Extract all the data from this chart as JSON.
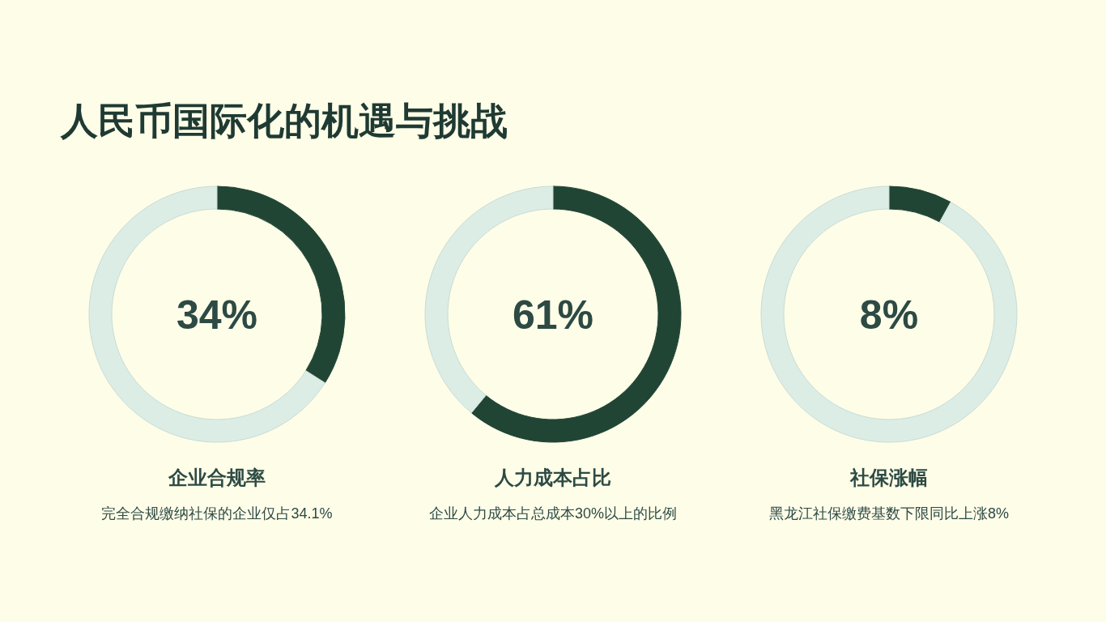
{
  "chart_data": [
    {
      "type": "other",
      "title": "人民币国际化的机遇与挑战"
    },
    {
      "type": "donut",
      "title": "企业合规率",
      "subtitle": "完全合规缴纳社保的企业仅占34.1%",
      "categories": [
        null,
        null
      ],
      "values": [
        34,
        66
      ],
      "colors": [
        "#214534",
        "#dcede6"
      ],
      "annotations": [
        "34%"
      ]
    },
    {
      "type": "donut",
      "title": "人力成本占比",
      "subtitle": "企业人力成本占总成本30%以上的比例",
      "categories": [
        null,
        null
      ],
      "values": [
        61,
        39
      ],
      "colors": [
        "#214534",
        "#dcede6"
      ],
      "annotations": [
        "61%"
      ]
    },
    {
      "type": "donut",
      "title": "社保涨幅",
      "subtitle": "黑龙江社保缴费基数下限同比上涨8%",
      "categories": [
        null,
        null
      ],
      "values": [
        8,
        92
      ],
      "colors": [
        "#214534",
        "#dcede6"
      ],
      "annotations": [
        "8%"
      ]
    }
  ]
}
